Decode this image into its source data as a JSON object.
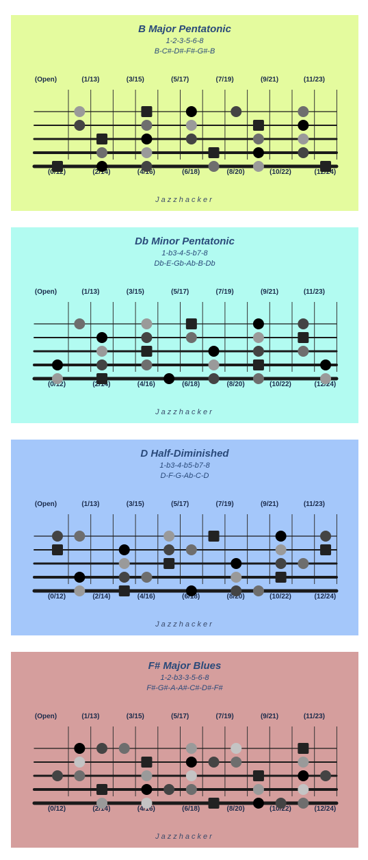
{
  "brand": "Jazzhacker",
  "fret_labels_top": [
    "(Open)",
    "(1/13)",
    "(3/15)",
    "(5/17)",
    "(7/19)",
    "(9/21)",
    "(11/23)"
  ],
  "fret_labels_bottom": [
    "(0/12)",
    "(2/14)",
    "(4/16)",
    "(6/18)",
    "(8/20)",
    "(10/22)",
    "(12/24)"
  ],
  "colors": {
    "black": "#000000",
    "dark": "#444444",
    "mid": "#6e6e6e",
    "light": "#9a9a9a",
    "pale": "#c4c4c4",
    "root": "#222222"
  },
  "panels": [
    {
      "title": "B Major Pentatonic",
      "formula": "1-2-3-5-6-8",
      "notes": "B-C#-D#-F#-G#-B",
      "background": "#e4fb9e",
      "markers": [
        {
          "string": 1,
          "fret": 1,
          "color": "light"
        },
        {
          "string": 1,
          "fret": 4,
          "color": "root",
          "root": true
        },
        {
          "string": 1,
          "fret": 6,
          "color": "black"
        },
        {
          "string": 1,
          "fret": 8,
          "color": "dark"
        },
        {
          "string": 1,
          "fret": 11,
          "color": "mid"
        },
        {
          "string": 2,
          "fret": 1,
          "color": "dark"
        },
        {
          "string": 2,
          "fret": 4,
          "color": "mid"
        },
        {
          "string": 2,
          "fret": 6,
          "color": "light"
        },
        {
          "string": 2,
          "fret": 9,
          "color": "root",
          "root": true
        },
        {
          "string": 2,
          "fret": 11,
          "color": "black"
        },
        {
          "string": 3,
          "fret": 2,
          "color": "root",
          "root": true
        },
        {
          "string": 3,
          "fret": 4,
          "color": "black"
        },
        {
          "string": 3,
          "fret": 6,
          "color": "dark"
        },
        {
          "string": 3,
          "fret": 9,
          "color": "mid"
        },
        {
          "string": 3,
          "fret": 11,
          "color": "light"
        },
        {
          "string": 4,
          "fret": 2,
          "color": "mid"
        },
        {
          "string": 4,
          "fret": 4,
          "color": "light"
        },
        {
          "string": 4,
          "fret": 7,
          "color": "root",
          "root": true
        },
        {
          "string": 4,
          "fret": 9,
          "color": "black"
        },
        {
          "string": 4,
          "fret": 11,
          "color": "dark"
        },
        {
          "string": 5,
          "fret": 0,
          "color": "root",
          "root": true
        },
        {
          "string": 5,
          "fret": 2,
          "color": "black"
        },
        {
          "string": 5,
          "fret": 4,
          "color": "dark"
        },
        {
          "string": 5,
          "fret": 7,
          "color": "mid"
        },
        {
          "string": 5,
          "fret": 9,
          "color": "light"
        },
        {
          "string": 5,
          "fret": 12,
          "color": "root",
          "root": true
        }
      ]
    },
    {
      "title": "Db Minor Pentatonic",
      "formula": "1-b3-4-5-b7-8",
      "notes": "Db-E-Gb-Ab-B-Db",
      "background": "#b2fbf1",
      "markers": [
        {
          "string": 1,
          "fret": 1,
          "color": "mid"
        },
        {
          "string": 1,
          "fret": 4,
          "color": "light"
        },
        {
          "string": 1,
          "fret": 6,
          "color": "root",
          "root": true
        },
        {
          "string": 1,
          "fret": 9,
          "color": "black"
        },
        {
          "string": 1,
          "fret": 11,
          "color": "dark"
        },
        {
          "string": 2,
          "fret": 2,
          "color": "black"
        },
        {
          "string": 2,
          "fret": 4,
          "color": "dark"
        },
        {
          "string": 2,
          "fret": 6,
          "color": "mid"
        },
        {
          "string": 2,
          "fret": 9,
          "color": "light"
        },
        {
          "string": 2,
          "fret": 11,
          "color": "root",
          "root": true
        },
        {
          "string": 3,
          "fret": 2,
          "color": "light"
        },
        {
          "string": 3,
          "fret": 4,
          "color": "root",
          "root": true
        },
        {
          "string": 3,
          "fret": 7,
          "color": "black"
        },
        {
          "string": 3,
          "fret": 9,
          "color": "dark"
        },
        {
          "string": 3,
          "fret": 11,
          "color": "mid"
        },
        {
          "string": 4,
          "fret": 0,
          "color": "black"
        },
        {
          "string": 4,
          "fret": 2,
          "color": "dark"
        },
        {
          "string": 4,
          "fret": 4,
          "color": "mid"
        },
        {
          "string": 4,
          "fret": 7,
          "color": "light"
        },
        {
          "string": 4,
          "fret": 9,
          "color": "root",
          "root": true
        },
        {
          "string": 4,
          "fret": 12,
          "color": "black"
        },
        {
          "string": 5,
          "fret": 0,
          "color": "light"
        },
        {
          "string": 5,
          "fret": 2,
          "color": "root",
          "root": true
        },
        {
          "string": 5,
          "fret": 5,
          "color": "black"
        },
        {
          "string": 5,
          "fret": 7,
          "color": "dark"
        },
        {
          "string": 5,
          "fret": 9,
          "color": "mid"
        },
        {
          "string": 5,
          "fret": 12,
          "color": "light"
        }
      ]
    },
    {
      "title": "D Half-Diminished",
      "formula": "1-b3-4-b5-b7-8",
      "notes": "D-F-G-Ab-C-D",
      "background": "#a4c7fa",
      "markers": [
        {
          "string": 1,
          "fret": 0,
          "color": "dark"
        },
        {
          "string": 1,
          "fret": 1,
          "color": "mid"
        },
        {
          "string": 1,
          "fret": 5,
          "color": "light"
        },
        {
          "string": 1,
          "fret": 7,
          "color": "root",
          "root": true
        },
        {
          "string": 1,
          "fret": 10,
          "color": "black"
        },
        {
          "string": 1,
          "fret": 12,
          "color": "dark"
        },
        {
          "string": 2,
          "fret": 0,
          "color": "root",
          "root": true
        },
        {
          "string": 2,
          "fret": 3,
          "color": "black"
        },
        {
          "string": 2,
          "fret": 5,
          "color": "dark"
        },
        {
          "string": 2,
          "fret": 6,
          "color": "mid"
        },
        {
          "string": 2,
          "fret": 10,
          "color": "light"
        },
        {
          "string": 2,
          "fret": 12,
          "color": "root",
          "root": true
        },
        {
          "string": 3,
          "fret": 3,
          "color": "light"
        },
        {
          "string": 3,
          "fret": 5,
          "color": "root",
          "root": true
        },
        {
          "string": 3,
          "fret": 8,
          "color": "black"
        },
        {
          "string": 3,
          "fret": 10,
          "color": "dark"
        },
        {
          "string": 3,
          "fret": 11,
          "color": "mid"
        },
        {
          "string": 4,
          "fret": 1,
          "color": "black"
        },
        {
          "string": 4,
          "fret": 3,
          "color": "dark"
        },
        {
          "string": 4,
          "fret": 4,
          "color": "mid"
        },
        {
          "string": 4,
          "fret": 8,
          "color": "light"
        },
        {
          "string": 4,
          "fret": 10,
          "color": "root",
          "root": true
        },
        {
          "string": 5,
          "fret": 1,
          "color": "light"
        },
        {
          "string": 5,
          "fret": 3,
          "color": "root",
          "root": true
        },
        {
          "string": 5,
          "fret": 6,
          "color": "black"
        },
        {
          "string": 5,
          "fret": 8,
          "color": "dark"
        },
        {
          "string": 5,
          "fret": 9,
          "color": "mid"
        }
      ]
    },
    {
      "title": "F# Major Blues",
      "formula": "1-2-b3-3-5-6-8",
      "notes": "F#-G#-A-A#-C#-D#-F#",
      "background": "#d59e9d",
      "markers": [
        {
          "string": 1,
          "fret": 1,
          "color": "black"
        },
        {
          "string": 1,
          "fret": 2,
          "color": "dark"
        },
        {
          "string": 1,
          "fret": 3,
          "color": "mid"
        },
        {
          "string": 1,
          "fret": 6,
          "color": "light"
        },
        {
          "string": 1,
          "fret": 8,
          "color": "pale"
        },
        {
          "string": 1,
          "fret": 11,
          "color": "root",
          "root": true
        },
        {
          "string": 2,
          "fret": 1,
          "color": "pale"
        },
        {
          "string": 2,
          "fret": 4,
          "color": "root",
          "root": true
        },
        {
          "string": 2,
          "fret": 6,
          "color": "black"
        },
        {
          "string": 2,
          "fret": 7,
          "color": "dark"
        },
        {
          "string": 2,
          "fret": 8,
          "color": "mid"
        },
        {
          "string": 2,
          "fret": 11,
          "color": "light"
        },
        {
          "string": 3,
          "fret": 0,
          "color": "dark"
        },
        {
          "string": 3,
          "fret": 1,
          "color": "mid"
        },
        {
          "string": 3,
          "fret": 4,
          "color": "light"
        },
        {
          "string": 3,
          "fret": 6,
          "color": "pale"
        },
        {
          "string": 3,
          "fret": 9,
          "color": "root",
          "root": true
        },
        {
          "string": 3,
          "fret": 11,
          "color": "black"
        },
        {
          "string": 3,
          "fret": 12,
          "color": "dark"
        },
        {
          "string": 4,
          "fret": 2,
          "color": "root",
          "root": true
        },
        {
          "string": 4,
          "fret": 4,
          "color": "black"
        },
        {
          "string": 4,
          "fret": 5,
          "color": "dark"
        },
        {
          "string": 4,
          "fret": 6,
          "color": "mid"
        },
        {
          "string": 4,
          "fret": 9,
          "color": "light"
        },
        {
          "string": 4,
          "fret": 11,
          "color": "pale"
        },
        {
          "string": 5,
          "fret": 2,
          "color": "light"
        },
        {
          "string": 5,
          "fret": 4,
          "color": "pale"
        },
        {
          "string": 5,
          "fret": 7,
          "color": "root",
          "root": true
        },
        {
          "string": 5,
          "fret": 9,
          "color": "black"
        },
        {
          "string": 5,
          "fret": 10,
          "color": "dark"
        },
        {
          "string": 5,
          "fret": 11,
          "color": "mid"
        }
      ]
    }
  ]
}
